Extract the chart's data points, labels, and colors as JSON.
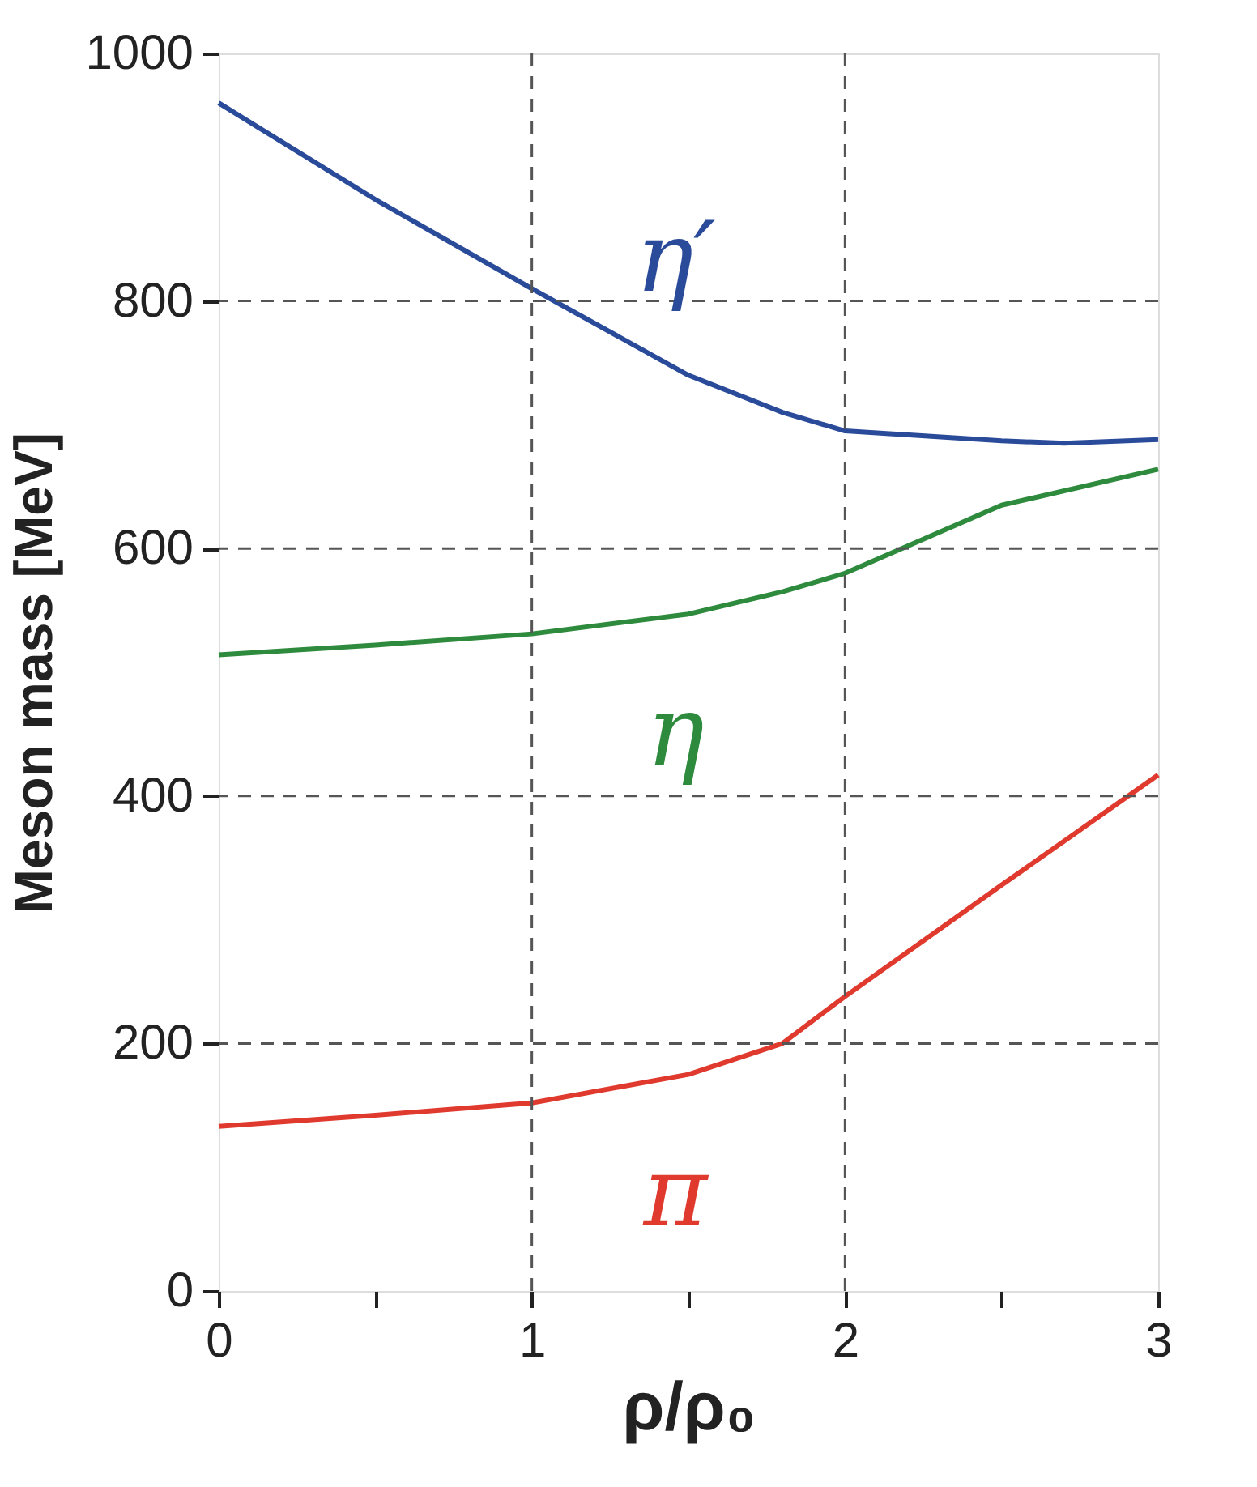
{
  "chart_data": {
    "type": "line",
    "xlabel": "ρ/ρ₀",
    "ylabel": "Meson mass [MeV]",
    "xlim": [
      0,
      3
    ],
    "ylim": [
      0,
      1000
    ],
    "xticks": [
      0,
      {
        "value": 0.5,
        "label": null
      },
      1,
      {
        "value": 1.5,
        "label": null
      },
      2,
      {
        "value": 2.5,
        "label": null
      },
      3
    ],
    "yticks": [
      0,
      200,
      400,
      600,
      800,
      1000
    ],
    "grid": true,
    "line_style": "solid",
    "marker": "none",
    "legend": false,
    "series": [
      {
        "name": "η′",
        "color": "#2a4a9a",
        "x": [
          0,
          0.5,
          1,
          1.5,
          1.8,
          2,
          2.5,
          2.7,
          3
        ],
        "values": [
          960,
          882,
          810,
          740,
          710,
          695,
          687,
          685,
          688
        ]
      },
      {
        "name": "η",
        "color": "#2e8b3e",
        "x": [
          0,
          0.5,
          1,
          1.5,
          1.8,
          2,
          2.5,
          3
        ],
        "values": [
          514,
          522,
          531,
          547,
          565,
          580,
          635,
          664
        ]
      },
      {
        "name": "π",
        "color": "#e03a2e",
        "x": [
          0,
          0.5,
          1,
          1.5,
          1.8,
          2,
          2.5,
          3
        ],
        "values": [
          133,
          142,
          152,
          175,
          200,
          238,
          328,
          417
        ]
      }
    ]
  }
}
